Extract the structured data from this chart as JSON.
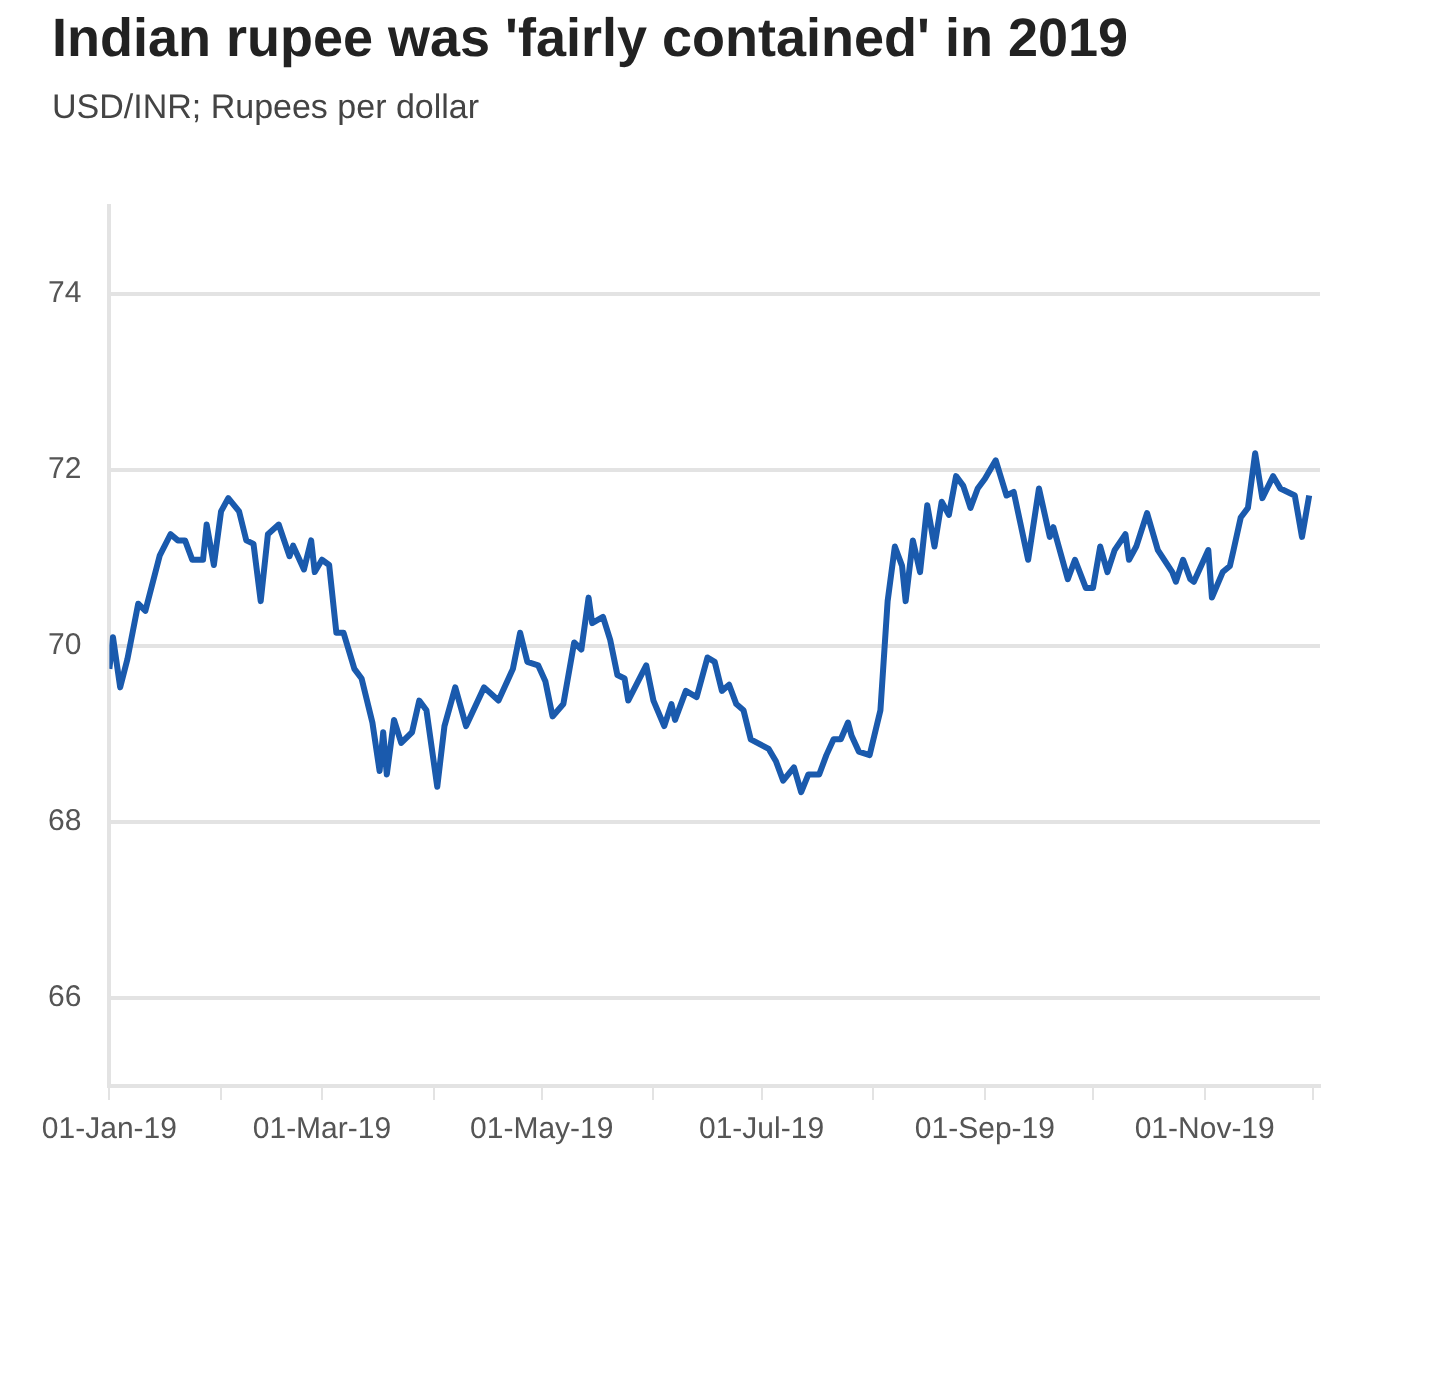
{
  "chart_data": {
    "type": "line",
    "title": "Indian rupee was 'fairly contained' in 2019",
    "subtitle": "USD/INR; Rupees per dollar",
    "x": [
      "2019-01-01",
      "2019-01-02",
      "2019-01-04",
      "2019-01-06",
      "2019-01-09",
      "2019-01-11",
      "2019-01-15",
      "2019-01-18",
      "2019-01-20",
      "2019-01-22",
      "2019-01-24",
      "2019-01-27",
      "2019-01-28",
      "2019-01-30",
      "2019-02-01",
      "2019-02-03",
      "2019-02-06",
      "2019-02-08",
      "2019-02-10",
      "2019-02-12",
      "2019-02-14",
      "2019-02-17",
      "2019-02-20",
      "2019-02-21",
      "2019-02-24",
      "2019-02-26",
      "2019-02-27",
      "2019-03-01",
      "2019-03-03",
      "2019-03-05",
      "2019-03-07",
      "2019-03-10",
      "2019-03-12",
      "2019-03-15",
      "2019-03-17",
      "2019-03-18",
      "2019-03-19",
      "2019-03-21",
      "2019-03-23",
      "2019-03-26",
      "2019-03-28",
      "2019-03-30",
      "2019-04-02",
      "2019-04-04",
      "2019-04-07",
      "2019-04-10",
      "2019-04-15",
      "2019-04-19",
      "2019-04-23",
      "2019-04-25",
      "2019-04-27",
      "2019-04-30",
      "2019-05-02",
      "2019-05-04",
      "2019-05-07",
      "2019-05-10",
      "2019-05-12",
      "2019-05-14",
      "2019-05-15",
      "2019-05-18",
      "2019-05-20",
      "2019-05-22",
      "2019-05-24",
      "2019-05-25",
      "2019-05-30",
      "2019-06-01",
      "2019-06-04",
      "2019-06-06",
      "2019-06-07",
      "2019-06-10",
      "2019-06-13",
      "2019-06-16",
      "2019-06-18",
      "2019-06-20",
      "2019-06-22",
      "2019-06-24",
      "2019-06-26",
      "2019-06-28",
      "2019-07-03",
      "2019-07-05",
      "2019-07-07",
      "2019-07-10",
      "2019-07-12",
      "2019-07-14",
      "2019-07-17",
      "2019-07-19",
      "2019-07-21",
      "2019-07-23",
      "2019-07-25",
      "2019-07-26",
      "2019-07-28",
      "2019-07-31",
      "2019-08-03",
      "2019-08-05",
      "2019-08-07",
      "2019-08-09",
      "2019-08-10",
      "2019-08-12",
      "2019-08-14",
      "2019-08-16",
      "2019-08-18",
      "2019-08-20",
      "2019-08-22",
      "2019-08-24",
      "2019-08-26",
      "2019-08-28",
      "2019-08-30",
      "2019-09-01",
      "2019-09-04",
      "2019-09-07",
      "2019-09-09",
      "2019-09-13",
      "2019-09-16",
      "2019-09-19",
      "2019-09-20",
      "2019-09-24",
      "2019-09-26",
      "2019-09-29",
      "2019-10-01",
      "2019-10-03",
      "2019-10-05",
      "2019-10-07",
      "2019-10-10",
      "2019-10-11",
      "2019-10-13",
      "2019-10-16",
      "2019-10-19",
      "2019-10-23",
      "2019-10-24",
      "2019-10-26",
      "2019-10-28",
      "2019-10-29",
      "2019-11-02",
      "2019-11-03",
      "2019-11-06",
      "2019-11-08",
      "2019-11-09",
      "2019-11-11",
      "2019-11-13",
      "2019-11-15",
      "2019-11-17",
      "2019-11-20",
      "2019-11-22",
      "2019-11-26",
      "2019-11-28",
      "2019-11-30"
    ],
    "series": [
      {
        "color": "#1a5aad",
        "values": [
          69.74,
          70.1,
          69.53,
          69.85,
          70.48,
          70.4,
          71.03,
          71.27,
          71.2,
          71.2,
          70.98,
          70.98,
          71.38,
          70.92,
          71.53,
          71.68,
          71.53,
          71.2,
          71.16,
          70.51,
          71.27,
          71.38,
          71.02,
          71.14,
          70.87,
          71.2,
          70.84,
          70.98,
          70.92,
          70.15,
          70.15,
          69.74,
          69.63,
          69.13,
          68.58,
          69.02,
          68.54,
          69.16,
          68.9,
          69.02,
          69.38,
          69.27,
          68.4,
          69.09,
          69.53,
          69.09,
          69.53,
          69.38,
          69.74,
          70.15,
          69.82,
          69.78,
          69.6,
          69.2,
          69.34,
          70.04,
          69.96,
          70.55,
          70.26,
          70.33,
          70.07,
          69.67,
          69.63,
          69.38,
          69.78,
          69.38,
          69.09,
          69.34,
          69.16,
          69.49,
          69.42,
          69.87,
          69.82,
          69.49,
          69.56,
          69.34,
          69.27,
          68.94,
          68.83,
          68.69,
          68.47,
          68.62,
          68.34,
          68.54,
          68.54,
          68.76,
          68.94,
          68.94,
          69.13,
          68.98,
          68.8,
          68.76,
          69.27,
          70.51,
          71.13,
          70.91,
          70.51,
          71.2,
          70.84,
          71.6,
          71.13,
          71.64,
          71.49,
          71.93,
          71.82,
          71.57,
          71.79,
          71.9,
          72.11,
          71.71,
          71.75,
          70.98,
          71.79,
          71.24,
          71.35,
          70.76,
          70.98,
          70.66,
          70.66,
          71.13,
          70.84,
          71.09,
          71.27,
          70.98,
          71.13,
          71.51,
          71.09,
          70.84,
          70.73,
          70.98,
          70.76,
          70.73,
          71.09,
          70.55,
          70.84,
          70.91,
          71.09,
          71.46,
          71.57,
          72.19,
          71.68,
          71.93,
          71.79,
          71.71,
          71.24,
          71.71
        ]
      }
    ],
    "xlim": [
      "2019-01-01",
      "2019-12-03"
    ],
    "xticks": [
      {
        "value": "2019-01-01",
        "label": "01-Jan-19"
      },
      {
        "value": "2019-02-01",
        "label": null
      },
      {
        "value": "2019-03-01",
        "label": "01-Mar-19"
      },
      {
        "value": "2019-04-01",
        "label": null
      },
      {
        "value": "2019-05-01",
        "label": "01-May-19"
      },
      {
        "value": "2019-06-01",
        "label": null
      },
      {
        "value": "2019-07-01",
        "label": "01-Jul-19"
      },
      {
        "value": "2019-08-01",
        "label": null
      },
      {
        "value": "2019-09-01",
        "label": "01-Sep-19"
      },
      {
        "value": "2019-10-01",
        "label": null
      },
      {
        "value": "2019-11-01",
        "label": "01-Nov-19"
      },
      {
        "value": "2019-12-01",
        "label": null
      }
    ],
    "ylim": [
      65,
      75
    ],
    "yticks": [
      66,
      68,
      70,
      72,
      74
    ],
    "grid": "y",
    "legend": false,
    "marker": "none",
    "line_style": "solid"
  }
}
